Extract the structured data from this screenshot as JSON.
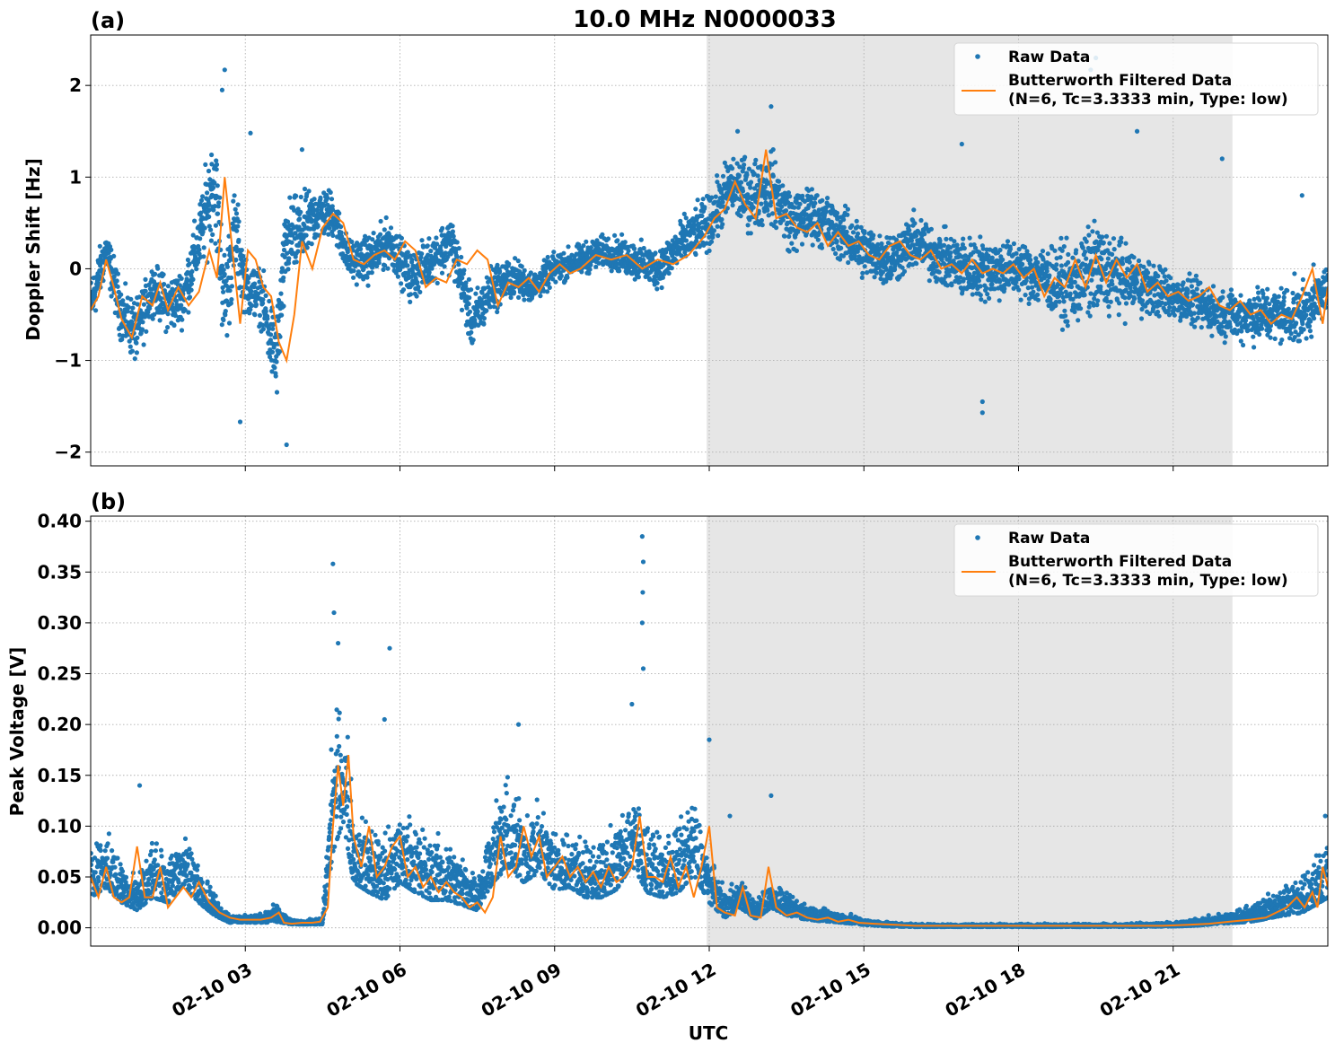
{
  "figure": {
    "title": "10.0 MHz N0000033",
    "xlabel": "UTC",
    "xticks": [
      "02-10 03",
      "02-10 06",
      "02-10 09",
      "02-10 12",
      "02-10 15",
      "02-10 18",
      "02-10 21"
    ],
    "shade_color": "#e6e6e6",
    "raw_color": "#1f77b4",
    "filtered_color": "#ff7f0e"
  },
  "chart_data": [
    {
      "type": "line",
      "panel_label": "(a)",
      "ylabel": "Doppler Shift [Hz]",
      "x_unit": "hours UTC on 02-10",
      "xlim": [
        0.0,
        24.0
      ],
      "ylim": [
        -2.15,
        2.55
      ],
      "yticks": [
        2,
        1,
        0,
        -1,
        -2
      ],
      "ytick_labels": [
        "2",
        "1",
        "0",
        "−1",
        "−2"
      ],
      "grid": true,
      "legend_position": "top-right",
      "shaded_interval": [
        11.95,
        22.15
      ],
      "series": [
        {
          "name": "Raw Data",
          "style": "points",
          "x": [
            0.0,
            0.3,
            0.6,
            0.9,
            1.2,
            1.5,
            1.8,
            2.1,
            2.4,
            2.6,
            2.8,
            3.0,
            3.3,
            3.6,
            3.8,
            4.1,
            4.4,
            4.7,
            5.0,
            5.4,
            5.8,
            6.2,
            6.6,
            7.0,
            7.4,
            7.8,
            8.2,
            8.6,
            9.0,
            9.5,
            10.0,
            10.5,
            11.0,
            11.5,
            12.0,
            12.4,
            12.8,
            13.2,
            13.6,
            14.0,
            14.5,
            15.0,
            15.5,
            16.0,
            16.5,
            17.0,
            17.5,
            18.0,
            18.5,
            19.0,
            19.5,
            20.0,
            20.5,
            21.0,
            21.5,
            22.0,
            22.5,
            23.0,
            23.5,
            24.0
          ],
          "y": [
            -0.4,
            0.2,
            -0.5,
            -0.7,
            -0.2,
            -0.4,
            -0.3,
            0.3,
            1.0,
            -0.4,
            0.4,
            -0.2,
            -0.3,
            -1.0,
            0.3,
            0.4,
            0.6,
            0.6,
            0.1,
            0.1,
            0.3,
            -0.1,
            0.1,
            0.3,
            -0.6,
            -0.2,
            -0.1,
            -0.2,
            0.0,
            0.1,
            0.2,
            0.1,
            0.0,
            0.3,
            0.5,
            0.9,
            0.8,
            0.9,
            0.5,
            0.6,
            0.4,
            0.2,
            0.1,
            0.3,
            0.1,
            0.0,
            0.0,
            0.0,
            -0.1,
            -0.2,
            0.0,
            -0.1,
            -0.2,
            -0.3,
            -0.4,
            -0.5,
            -0.5,
            -0.5,
            -0.5,
            -0.2
          ],
          "spread": [
            0.35,
            0.3,
            0.35,
            0.4,
            0.3,
            0.35,
            0.35,
            0.45,
            0.7,
            0.7,
            0.6,
            0.35,
            0.35,
            0.6,
            0.55,
            0.45,
            0.35,
            0.3,
            0.25,
            0.3,
            0.3,
            0.3,
            0.3,
            0.35,
            0.35,
            0.3,
            0.25,
            0.2,
            0.2,
            0.2,
            0.2,
            0.25,
            0.25,
            0.3,
            0.35,
            0.4,
            0.45,
            0.45,
            0.4,
            0.35,
            0.35,
            0.35,
            0.35,
            0.35,
            0.35,
            0.4,
            0.4,
            0.35,
            0.4,
            0.5,
            0.6,
            0.45,
            0.35,
            0.3,
            0.3,
            0.3,
            0.35,
            0.35,
            0.4,
            0.3
          ],
          "outliers": [
            [
              2.6,
              2.17
            ],
            [
              2.55,
              1.95
            ],
            [
              3.8,
              -1.92
            ],
            [
              4.1,
              1.3
            ],
            [
              13.2,
              1.77
            ],
            [
              12.55,
              1.5
            ],
            [
              16.9,
              1.36
            ],
            [
              17.3,
              -1.57
            ],
            [
              17.3,
              -1.45
            ],
            [
              19.5,
              2.3
            ],
            [
              19.4,
              2.17
            ],
            [
              20.3,
              1.5
            ],
            [
              21.95,
              1.2
            ],
            [
              23.5,
              0.8
            ],
            [
              3.1,
              1.48
            ],
            [
              2.9,
              -1.67
            ]
          ]
        },
        {
          "name": "Butterworth Filtered Data\n(N=6, Tc=3.3333 min, Type: low)",
          "style": "line",
          "x": [
            0.0,
            0.15,
            0.3,
            0.45,
            0.6,
            0.8,
            1.0,
            1.2,
            1.35,
            1.5,
            1.7,
            1.9,
            2.1,
            2.3,
            2.45,
            2.6,
            2.75,
            2.9,
            3.05,
            3.2,
            3.35,
            3.5,
            3.65,
            3.8,
            3.95,
            4.1,
            4.3,
            4.5,
            4.7,
            4.9,
            5.1,
            5.3,
            5.5,
            5.7,
            5.9,
            6.1,
            6.3,
            6.5,
            6.7,
            6.9,
            7.1,
            7.3,
            7.5,
            7.7,
            7.9,
            8.1,
            8.3,
            8.5,
            8.7,
            8.9,
            9.1,
            9.3,
            9.5,
            9.8,
            10.1,
            10.4,
            10.7,
            11.0,
            11.3,
            11.6,
            11.9,
            12.1,
            12.3,
            12.5,
            12.7,
            12.9,
            13.1,
            13.3,
            13.5,
            13.7,
            13.9,
            14.1,
            14.3,
            14.5,
            14.7,
            14.9,
            15.1,
            15.3,
            15.5,
            15.7,
            15.9,
            16.1,
            16.3,
            16.5,
            16.7,
            16.9,
            17.1,
            17.3,
            17.5,
            17.7,
            17.9,
            18.1,
            18.3,
            18.5,
            18.7,
            18.9,
            19.1,
            19.3,
            19.5,
            19.7,
            19.9,
            20.1,
            20.3,
            20.5,
            20.7,
            20.9,
            21.1,
            21.3,
            21.5,
            21.7,
            21.9,
            22.1,
            22.3,
            22.5,
            22.7,
            22.9,
            23.1,
            23.3,
            23.5,
            23.7,
            23.9,
            24.0
          ],
          "y": [
            -0.45,
            -0.3,
            0.1,
            -0.2,
            -0.55,
            -0.75,
            -0.3,
            -0.4,
            -0.15,
            -0.45,
            -0.2,
            -0.4,
            -0.25,
            0.2,
            -0.1,
            1.0,
            0.2,
            -0.6,
            0.2,
            0.1,
            -0.2,
            -0.3,
            -0.8,
            -1.0,
            -0.5,
            0.3,
            0.0,
            0.45,
            0.6,
            0.5,
            0.1,
            0.05,
            0.15,
            0.2,
            0.1,
            0.3,
            0.2,
            -0.2,
            -0.1,
            -0.15,
            0.1,
            0.05,
            0.2,
            0.1,
            -0.4,
            -0.15,
            -0.2,
            -0.1,
            -0.25,
            -0.05,
            0.05,
            -0.05,
            0.0,
            0.15,
            0.1,
            0.15,
            0.0,
            0.1,
            0.05,
            0.15,
            0.35,
            0.55,
            0.65,
            0.95,
            0.7,
            0.55,
            1.3,
            0.55,
            0.6,
            0.45,
            0.4,
            0.5,
            0.25,
            0.4,
            0.25,
            0.3,
            0.15,
            0.1,
            0.25,
            0.3,
            0.15,
            0.1,
            0.2,
            0.0,
            0.05,
            -0.05,
            0.1,
            -0.05,
            0.0,
            -0.05,
            0.05,
            -0.1,
            0.0,
            -0.3,
            -0.1,
            -0.2,
            0.1,
            -0.2,
            0.15,
            -0.15,
            0.1,
            -0.1,
            0.05,
            -0.25,
            -0.15,
            -0.3,
            -0.25,
            -0.35,
            -0.3,
            -0.2,
            -0.4,
            -0.45,
            -0.35,
            -0.5,
            -0.45,
            -0.6,
            -0.5,
            -0.55,
            -0.3,
            0.0,
            -0.6,
            -0.2
          ]
        }
      ]
    },
    {
      "type": "line",
      "panel_label": "(b)",
      "ylabel": "Peak Voltage [V]",
      "x_unit": "hours UTC on 02-10",
      "xlim": [
        0.0,
        24.0
      ],
      "ylim": [
        -0.018,
        0.405
      ],
      "yticks": [
        0.0,
        0.05,
        0.1,
        0.15,
        0.2,
        0.25,
        0.3,
        0.35,
        0.4
      ],
      "ytick_labels": [
        "0.00",
        "0.05",
        "0.10",
        "0.15",
        "0.20",
        "0.25",
        "0.30",
        "0.35",
        "0.40"
      ],
      "grid": true,
      "legend_position": "top-right",
      "shaded_interval": [
        11.95,
        22.15
      ],
      "series": [
        {
          "name": "Raw Data",
          "style": "points",
          "x": [
            0.0,
            0.3,
            0.6,
            0.9,
            1.2,
            1.5,
            1.8,
            2.1,
            2.4,
            2.7,
            3.0,
            3.3,
            3.6,
            3.9,
            4.2,
            4.5,
            4.7,
            4.9,
            5.1,
            5.4,
            5.7,
            6.0,
            6.3,
            6.6,
            6.9,
            7.2,
            7.5,
            7.8,
            8.1,
            8.4,
            8.7,
            9.0,
            9.3,
            9.6,
            9.9,
            10.2,
            10.5,
            10.8,
            11.1,
            11.4,
            11.7,
            12.0,
            12.3,
            12.6,
            12.9,
            13.2,
            13.5,
            13.8,
            14.1,
            14.4,
            14.7,
            15.0,
            15.5,
            16.0,
            17.0,
            18.0,
            19.0,
            20.0,
            21.0,
            21.5,
            22.0,
            22.5,
            23.0,
            23.5,
            24.0
          ],
          "y": [
            0.05,
            0.06,
            0.04,
            0.03,
            0.05,
            0.04,
            0.06,
            0.04,
            0.02,
            0.008,
            0.008,
            0.008,
            0.012,
            0.005,
            0.005,
            0.006,
            0.12,
            0.15,
            0.07,
            0.06,
            0.05,
            0.07,
            0.06,
            0.05,
            0.05,
            0.04,
            0.03,
            0.07,
            0.09,
            0.07,
            0.08,
            0.06,
            0.06,
            0.05,
            0.05,
            0.06,
            0.09,
            0.06,
            0.05,
            0.06,
            0.08,
            0.04,
            0.02,
            0.03,
            0.015,
            0.03,
            0.02,
            0.015,
            0.012,
            0.01,
            0.008,
            0.005,
            0.003,
            0.002,
            0.002,
            0.002,
            0.002,
            0.002,
            0.003,
            0.005,
            0.008,
            0.012,
            0.02,
            0.03,
            0.05
          ],
          "spread": [
            0.04,
            0.04,
            0.03,
            0.025,
            0.04,
            0.03,
            0.035,
            0.03,
            0.015,
            0.006,
            0.005,
            0.006,
            0.012,
            0.003,
            0.003,
            0.005,
            0.09,
            0.09,
            0.05,
            0.05,
            0.045,
            0.05,
            0.05,
            0.045,
            0.045,
            0.035,
            0.025,
            0.05,
            0.06,
            0.05,
            0.05,
            0.045,
            0.04,
            0.04,
            0.04,
            0.045,
            0.055,
            0.05,
            0.04,
            0.05,
            0.055,
            0.03,
            0.02,
            0.02,
            0.012,
            0.02,
            0.015,
            0.012,
            0.01,
            0.008,
            0.007,
            0.004,
            0.003,
            0.002,
            0.002,
            0.002,
            0.002,
            0.002,
            0.003,
            0.005,
            0.007,
            0.012,
            0.018,
            0.03,
            0.04
          ],
          "outliers": [
            [
              10.7,
              0.385
            ],
            [
              10.72,
              0.36
            ],
            [
              10.71,
              0.33
            ],
            [
              10.7,
              0.3
            ],
            [
              10.72,
              0.255
            ],
            [
              4.7,
              0.358
            ],
            [
              4.72,
              0.31
            ],
            [
              4.8,
              0.28
            ],
            [
              5.8,
              0.275
            ],
            [
              5.7,
              0.205
            ],
            [
              8.3,
              0.2
            ],
            [
              12.0,
              0.185
            ],
            [
              10.5,
              0.22
            ],
            [
              12.4,
              0.11
            ],
            [
              13.2,
              0.13
            ],
            [
              0.95,
              0.14
            ],
            [
              23.95,
              0.11
            ]
          ]
        },
        {
          "name": "Butterworth Filtered Data\n(N=6, Tc=3.3333 min, Type: low)",
          "style": "line",
          "x": [
            0.0,
            0.15,
            0.3,
            0.45,
            0.6,
            0.75,
            0.9,
            1.05,
            1.2,
            1.35,
            1.5,
            1.65,
            1.8,
            1.95,
            2.1,
            2.3,
            2.5,
            2.7,
            2.9,
            3.1,
            3.3,
            3.5,
            3.65,
            3.75,
            3.9,
            4.1,
            4.3,
            4.45,
            4.6,
            4.7,
            4.8,
            4.9,
            5.0,
            5.1,
            5.25,
            5.4,
            5.55,
            5.7,
            5.85,
            6.0,
            6.15,
            6.3,
            6.45,
            6.6,
            6.75,
            6.9,
            7.05,
            7.2,
            7.35,
            7.5,
            7.65,
            7.8,
            7.95,
            8.1,
            8.25,
            8.4,
            8.55,
            8.7,
            8.85,
            9.0,
            9.15,
            9.3,
            9.45,
            9.6,
            9.75,
            9.9,
            10.05,
            10.2,
            10.35,
            10.5,
            10.65,
            10.8,
            10.95,
            11.1,
            11.25,
            11.4,
            11.55,
            11.7,
            11.85,
            12.0,
            12.15,
            12.3,
            12.5,
            12.65,
            12.8,
            13.0,
            13.15,
            13.3,
            13.5,
            13.7,
            13.9,
            14.1,
            14.3,
            14.5,
            14.7,
            14.9,
            15.2,
            15.6,
            16.0,
            17.0,
            18.0,
            19.0,
            20.0,
            20.8,
            21.3,
            21.7,
            22.1,
            22.5,
            22.8,
            23.0,
            23.2,
            23.4,
            23.55,
            23.7,
            23.8,
            23.9,
            24.0
          ],
          "y": [
            0.05,
            0.03,
            0.06,
            0.03,
            0.025,
            0.03,
            0.08,
            0.03,
            0.03,
            0.06,
            0.02,
            0.03,
            0.04,
            0.03,
            0.045,
            0.025,
            0.015,
            0.01,
            0.008,
            0.008,
            0.008,
            0.01,
            0.015,
            0.005,
            0.004,
            0.005,
            0.005,
            0.006,
            0.02,
            0.1,
            0.16,
            0.12,
            0.17,
            0.09,
            0.06,
            0.1,
            0.05,
            0.06,
            0.08,
            0.09,
            0.05,
            0.06,
            0.04,
            0.05,
            0.035,
            0.045,
            0.035,
            0.03,
            0.02,
            0.025,
            0.015,
            0.03,
            0.09,
            0.05,
            0.06,
            0.1,
            0.07,
            0.09,
            0.05,
            0.06,
            0.07,
            0.05,
            0.06,
            0.045,
            0.055,
            0.04,
            0.06,
            0.045,
            0.05,
            0.06,
            0.11,
            0.05,
            0.05,
            0.045,
            0.07,
            0.04,
            0.06,
            0.03,
            0.06,
            0.1,
            0.02,
            0.015,
            0.012,
            0.04,
            0.012,
            0.01,
            0.06,
            0.02,
            0.012,
            0.015,
            0.01,
            0.008,
            0.01,
            0.006,
            0.008,
            0.005,
            0.004,
            0.003,
            0.002,
            0.002,
            0.002,
            0.002,
            0.002,
            0.002,
            0.003,
            0.004,
            0.006,
            0.008,
            0.01,
            0.015,
            0.02,
            0.03,
            0.02,
            0.035,
            0.02,
            0.06,
            0.04
          ]
        }
      ]
    }
  ]
}
